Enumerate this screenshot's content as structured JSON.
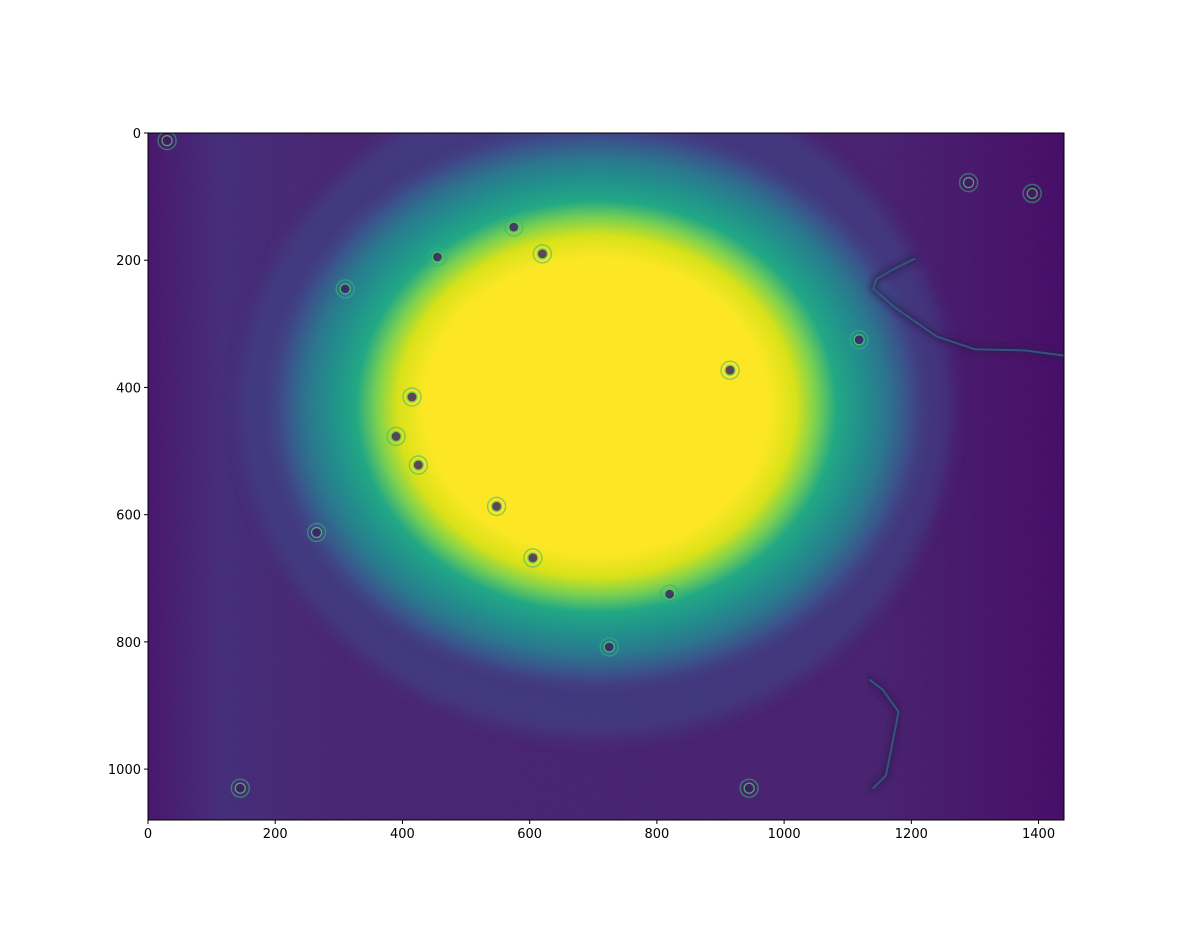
{
  "chart_data": {
    "type": "heatmap",
    "title": "",
    "xlabel": "",
    "ylabel": "",
    "colormap": "viridis",
    "image_width": 1440,
    "image_height": 1080,
    "xlim": [
      0,
      1440
    ],
    "ylim": [
      1080,
      0
    ],
    "y_inverted": true,
    "grid": false,
    "colorbar": false,
    "x_ticks": [
      0,
      200,
      400,
      600,
      800,
      1000,
      1200,
      1400
    ],
    "x_tick_labels": [
      "0",
      "200",
      "400",
      "600",
      "800",
      "1000",
      "1200",
      "1400"
    ],
    "y_ticks": [
      0,
      200,
      400,
      600,
      800,
      1000
    ],
    "y_tick_labels": [
      "0",
      "200",
      "400",
      "600",
      "800",
      "1000"
    ],
    "features": {
      "bright_spot": {
        "center": [
          705,
          430
        ],
        "radius_x": 300,
        "radius_y": 250,
        "level": "saturated"
      },
      "halo": {
        "center": [
          705,
          430
        ],
        "radius_x": 560,
        "radius_y": 520
      },
      "particles": [
        {
          "x": 620,
          "y": 190
        },
        {
          "x": 915,
          "y": 373
        },
        {
          "x": 390,
          "y": 477
        },
        {
          "x": 455,
          "y": 195
        },
        {
          "x": 415,
          "y": 415
        },
        {
          "x": 425,
          "y": 522
        },
        {
          "x": 820,
          "y": 725
        },
        {
          "x": 725,
          "y": 808
        },
        {
          "x": 575,
          "y": 148
        },
        {
          "x": 30,
          "y": 12
        },
        {
          "x": 145,
          "y": 1030
        },
        {
          "x": 945,
          "y": 1030
        },
        {
          "x": 265,
          "y": 628
        },
        {
          "x": 1390,
          "y": 95
        },
        {
          "x": 1290,
          "y": 78
        },
        {
          "x": 1118,
          "y": 325
        },
        {
          "x": 548,
          "y": 587
        },
        {
          "x": 605,
          "y": 668
        },
        {
          "x": 310,
          "y": 245
        }
      ],
      "fibers": [
        [
          [
            1205,
            198
          ],
          [
            1170,
            215
          ],
          [
            1145,
            230
          ],
          [
            1140,
            245
          ],
          [
            1175,
            275
          ],
          [
            1240,
            320
          ],
          [
            1300,
            340
          ],
          [
            1380,
            342
          ],
          [
            1440,
            350
          ]
        ],
        [
          [
            1135,
            860
          ],
          [
            1155,
            875
          ],
          [
            1180,
            910
          ],
          [
            1170,
            960
          ],
          [
            1160,
            1010
          ],
          [
            1140,
            1030
          ]
        ]
      ]
    }
  }
}
